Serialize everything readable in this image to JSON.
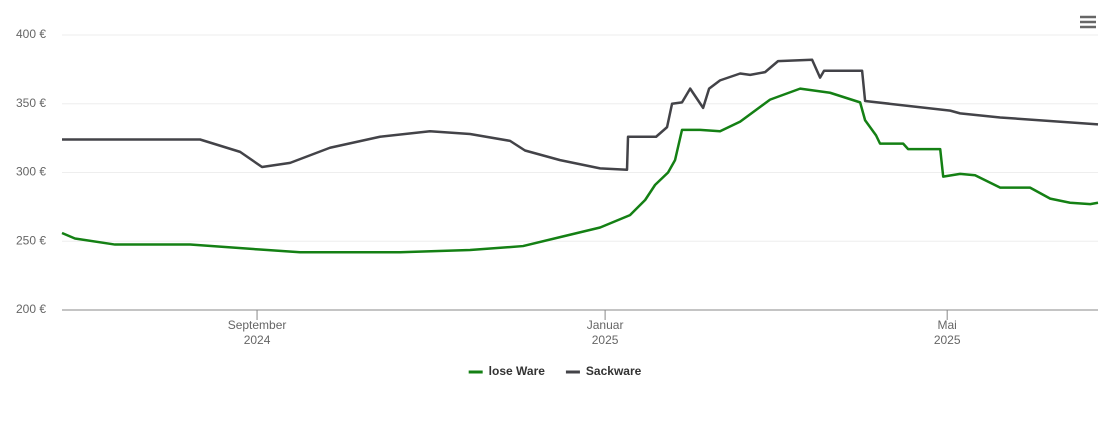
{
  "chart_data": {
    "type": "line",
    "series": [
      {
        "name": "lose Ware",
        "color": "#148014",
        "x": [
          0,
          0.65,
          2.66,
          6.43,
          9.94,
          11.95,
          16.97,
          20.48,
          23.14,
          25,
          27.01,
          28.51,
          29.27,
          29.77,
          30.42,
          30.77,
          31.12,
          32.03,
          33.03,
          34.04,
          35.54,
          37.05,
          38.55,
          40.06,
          40.31,
          40.86,
          41.06,
          42.22,
          42.47,
          44.08,
          44.23,
          45.08,
          45.83,
          47.09,
          48.59,
          49.6,
          50.6,
          51.61,
          52
        ],
        "values": [
          256,
          252,
          247.6,
          247.6,
          244,
          242,
          242,
          243.6,
          246.5,
          253,
          260,
          269,
          280,
          291,
          300,
          309,
          331,
          331,
          330,
          337,
          353,
          361,
          358,
          351,
          338,
          327,
          321,
          321,
          317,
          317,
          297,
          299,
          298,
          289,
          289,
          281,
          278,
          277,
          278
        ]
      },
      {
        "name": "Sackware",
        "color": "#434348",
        "x": [
          0,
          6.93,
          8.94,
          10.04,
          11.45,
          13.45,
          15.96,
          18.47,
          20.48,
          22.49,
          23.24,
          25,
          27.01,
          28.36,
          28.41,
          29.82,
          30.37,
          30.62,
          31.12,
          31.53,
          32.18,
          32.48,
          33.03,
          34.04,
          34.54,
          35.29,
          35.94,
          37.65,
          38.05,
          38.25,
          40.16,
          40.31,
          44.58,
          45.08,
          47.09,
          52
        ],
        "values": [
          324,
          324,
          315,
          304,
          307,
          318,
          326,
          330,
          328,
          323,
          316,
          309,
          303,
          302,
          326,
          326,
          333,
          350,
          351,
          361,
          347,
          361,
          367,
          372,
          371,
          373,
          381,
          382,
          369,
          374,
          374,
          352,
          345,
          343,
          340,
          335
        ]
      }
    ],
    "xlim": [
      0,
      52
    ],
    "xticks": [
      {
        "value": 9.79,
        "label": "September 2024"
      },
      {
        "value": 27.26,
        "label": "Januar 2025"
      },
      {
        "value": 44.43,
        "label": "Mai 2025"
      }
    ],
    "ylim": [
      200,
      400
    ],
    "yticks": [
      {
        "value": 200,
        "label": "200 €"
      },
      {
        "value": 250,
        "label": "250 €"
      },
      {
        "value": 300,
        "label": "300 €"
      },
      {
        "value": 350,
        "label": "350 €"
      },
      {
        "value": 400,
        "label": "400 €"
      }
    ],
    "grid": true
  }
}
